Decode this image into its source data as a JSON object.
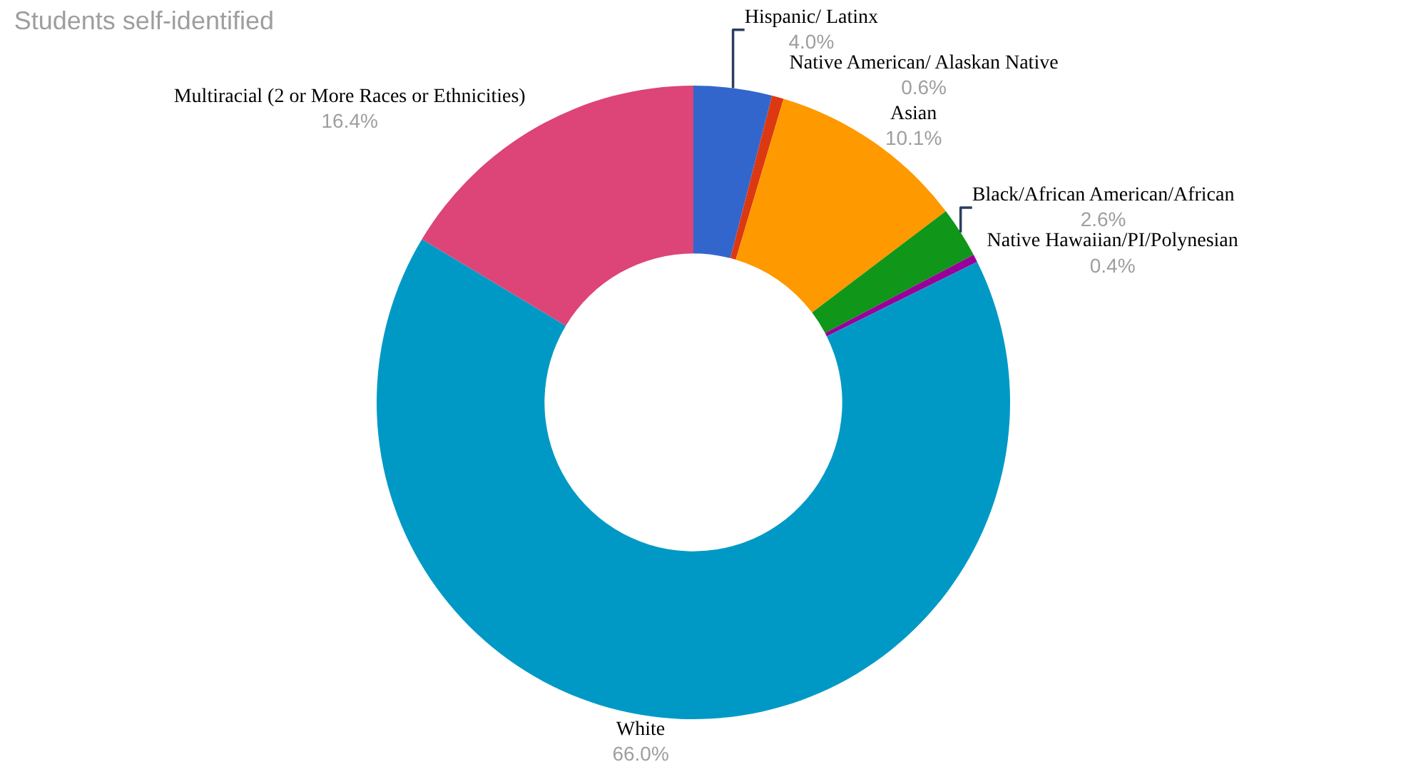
{
  "chart_data": {
    "type": "donut",
    "title": "Students self-identified",
    "categories": [
      "Hispanic/ Latinx",
      "Native American/ Alaskan Native",
      "Asian",
      "Black/African American/African",
      "Native Hawaiian/PI/Polynesian",
      "White",
      "Multiracial (2 or More Races or Ethnicities)"
    ],
    "values": [
      4.0,
      0.6,
      10.1,
      2.6,
      0.4,
      66.0,
      16.4
    ],
    "value_labels": [
      "4.0%",
      "0.6%",
      "10.1%",
      "2.6%",
      "0.4%",
      "66.0%",
      "16.4%"
    ],
    "colors": [
      "#3366cc",
      "#dc3912",
      "#ff9900",
      "#109618",
      "#990099",
      "#0099c6",
      "#dd4477"
    ],
    "legend": false
  }
}
